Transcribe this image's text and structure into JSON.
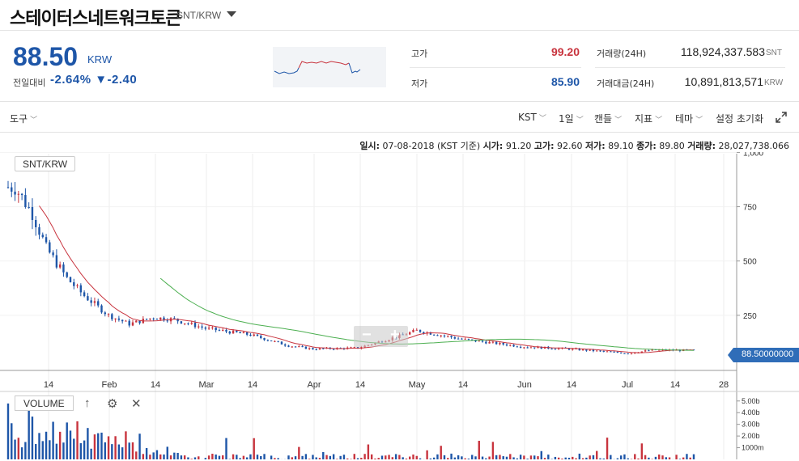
{
  "header": {
    "coin_name": "스테이터스네트워크토큰",
    "pair": "SNT/KRW"
  },
  "ticker": {
    "price": "88.50",
    "unit": "KRW",
    "change_label": "전일대비",
    "change_value": "-2.64% ▼-2.40",
    "high_label": "고가",
    "high_value": "99.20",
    "low_label": "저가",
    "low_value": "85.90",
    "volume_label": "거래량(24H)",
    "volume_value": "118,924,337.583",
    "volume_unit": "SNT",
    "amount_label": "거래대금(24H)",
    "amount_value": "10,891,813,571",
    "amount_unit": "KRW"
  },
  "toolbar": {
    "tools": "도구",
    "timezone": "KST",
    "interval": "1일",
    "chart_type": "캔들",
    "indicator": "지표",
    "theme": "테마",
    "reset": "설정 초기화",
    "icons": {
      "expand": "expand-icon"
    }
  },
  "infobar": {
    "date_label": "일시:",
    "date_value": "07-08-2018 (KST 기준)",
    "open_label": "시가:",
    "open_value": "91.20",
    "high_label": "고가:",
    "high_value": "92.60",
    "low_label": "저가:",
    "low_value": "89.10",
    "close_label": "종가:",
    "close_value": "89.80",
    "volume_label": "거래량:",
    "volume_value": "28,027,738.066"
  },
  "chart_legend": {
    "pair": "SNT/KRW",
    "volume": "VOLUME",
    "price_tag": "88.50000000"
  },
  "colors": {
    "up": "#c8343e",
    "down": "#1e56a8",
    "ma_short": "#c8343e",
    "ma_long": "#4caf50"
  },
  "chart_data": [
    {
      "type": "candlestick",
      "title": "SNT/KRW",
      "x_tick_labels": [
        "14",
        "Feb",
        "14",
        "Mar",
        "14",
        "Apr",
        "14",
        "May",
        "14",
        "Jun",
        "14",
        "Jul",
        "14",
        "28"
      ],
      "y_tick_labels": [
        "1,000",
        "750",
        "500",
        "250"
      ],
      "ylim": [
        0,
        1050
      ],
      "close_series": [
        {
          "date": "2018-01-05",
          "value": 840
        },
        {
          "date": "2018-01-10",
          "value": 720
        },
        {
          "date": "2018-01-14",
          "value": 560
        },
        {
          "date": "2018-01-20",
          "value": 420
        },
        {
          "date": "2018-01-25",
          "value": 340
        },
        {
          "date": "2018-02-01",
          "value": 250
        },
        {
          "date": "2018-02-07",
          "value": 210
        },
        {
          "date": "2018-02-14",
          "value": 240
        },
        {
          "date": "2018-02-20",
          "value": 230
        },
        {
          "date": "2018-03-01",
          "value": 190
        },
        {
          "date": "2018-03-14",
          "value": 160
        },
        {
          "date": "2018-03-25",
          "value": 110
        },
        {
          "date": "2018-04-01",
          "value": 95
        },
        {
          "date": "2018-04-14",
          "value": 100
        },
        {
          "date": "2018-04-25",
          "value": 150
        },
        {
          "date": "2018-05-01",
          "value": 180
        },
        {
          "date": "2018-05-14",
          "value": 140
        },
        {
          "date": "2018-06-01",
          "value": 105
        },
        {
          "date": "2018-06-14",
          "value": 95
        },
        {
          "date": "2018-07-01",
          "value": 75
        },
        {
          "date": "2018-07-08",
          "value": 90
        },
        {
          "date": "2018-07-20",
          "value": 88.5
        }
      ],
      "series": [
        {
          "name": "MA short",
          "color": "#c8343e"
        },
        {
          "name": "MA long",
          "color": "#4caf50"
        }
      ]
    },
    {
      "type": "bar",
      "title": "VOLUME",
      "y_tick_labels": [
        "5.00b",
        "4.00b",
        "3.00b",
        "2.00b",
        "1000m"
      ]
    }
  ]
}
